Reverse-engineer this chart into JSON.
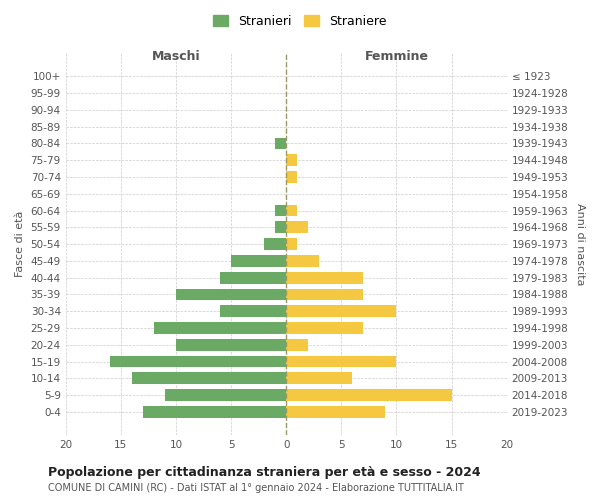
{
  "age_groups": [
    "0-4",
    "5-9",
    "10-14",
    "15-19",
    "20-24",
    "25-29",
    "30-34",
    "35-39",
    "40-44",
    "45-49",
    "50-54",
    "55-59",
    "60-64",
    "65-69",
    "70-74",
    "75-79",
    "80-84",
    "85-89",
    "90-94",
    "95-99",
    "100+"
  ],
  "birth_years": [
    "2019-2023",
    "2014-2018",
    "2009-2013",
    "2004-2008",
    "1999-2003",
    "1994-1998",
    "1989-1993",
    "1984-1988",
    "1979-1983",
    "1974-1978",
    "1969-1973",
    "1964-1968",
    "1959-1963",
    "1954-1958",
    "1949-1953",
    "1944-1948",
    "1939-1943",
    "1934-1938",
    "1929-1933",
    "1924-1928",
    "≤ 1923"
  ],
  "males": [
    13,
    11,
    14,
    16,
    10,
    12,
    6,
    10,
    6,
    5,
    2,
    1,
    1,
    0,
    0,
    0,
    1,
    0,
    0,
    0,
    0
  ],
  "females": [
    9,
    15,
    6,
    10,
    2,
    7,
    10,
    7,
    7,
    3,
    1,
    2,
    1,
    0,
    1,
    1,
    0,
    0,
    0,
    0,
    0
  ],
  "male_color": "#6aaa64",
  "female_color": "#f5c842",
  "male_label": "Stranieri",
  "female_label": "Straniere",
  "title": "Popolazione per cittadinanza straniera per età e sesso - 2024",
  "subtitle": "COMUNE DI CAMINI (RC) - Dati ISTAT al 1° gennaio 2024 - Elaborazione TUTTITALIA.IT",
  "xlabel_left": "Maschi",
  "xlabel_right": "Femmine",
  "ylabel_left": "Fasce di età",
  "ylabel_right": "Anni di nascita",
  "xlim": 20,
  "background_color": "#ffffff",
  "grid_color": "#cccccc"
}
